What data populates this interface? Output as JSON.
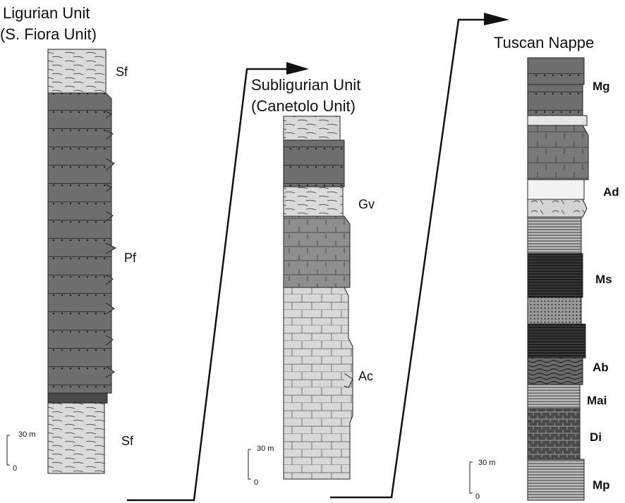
{
  "columns": {
    "ligurian": {
      "title_line1": "Ligurian Unit",
      "title_line2": "(S. Fiora Unit)",
      "labels": {
        "sf_top": "Sf",
        "pf": "Pf",
        "sf_bottom": "Sf"
      }
    },
    "subligurian": {
      "title_line1": "Subligurian Unit",
      "title_line2": "(Canetolo Unit)",
      "labels": {
        "gv": "Gv",
        "ac": "Ac"
      }
    },
    "tuscan": {
      "title": "Tuscan Nappe",
      "labels": {
        "mg": "Mg",
        "ad": "Ad",
        "ms": "Ms",
        "ab": "Ab",
        "mai": "Mai",
        "di": "Di",
        "mp": "Mp"
      }
    }
  },
  "scale_bar": {
    "top": "30 m",
    "bottom": "0"
  },
  "colors": {
    "dark_gray": "#6e6e6e",
    "medium_gray": "#8a8a8a",
    "light_gray": "#d2d2d2",
    "very_light": "#e8e8e8",
    "black": "#1a1a1a"
  }
}
